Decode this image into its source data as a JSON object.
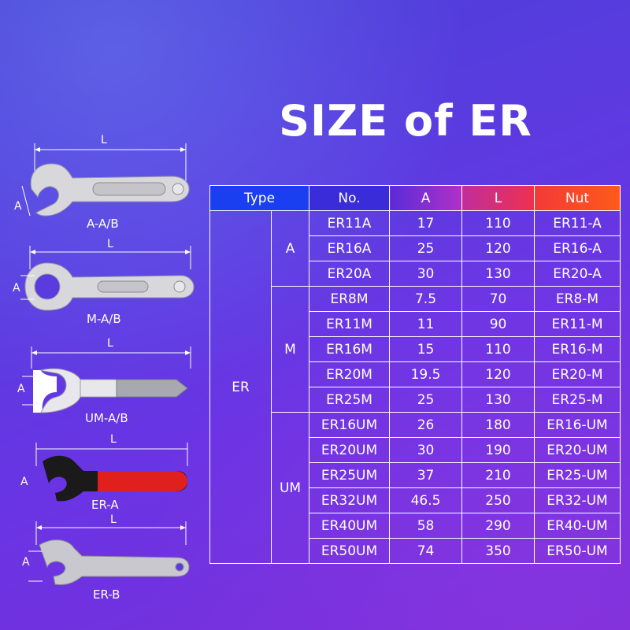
{
  "title": "SIZE of ER",
  "table": {
    "headers": {
      "type": "Type",
      "no": "No.",
      "a": "A",
      "l": "L",
      "nut": "Nut"
    },
    "header_colors": {
      "type": "#1a3ff0",
      "no": "#3a2cd8",
      "a": "#8a2fd8",
      "l": "#e0305a",
      "nut": "#ff4a1c"
    },
    "group": "ER",
    "subgroups": [
      "A",
      "M",
      "UM"
    ],
    "rows": [
      {
        "no": "ER11A",
        "a": "17",
        "l": "110",
        "nut": "ER11-A"
      },
      {
        "no": "ER16A",
        "a": "25",
        "l": "120",
        "nut": "ER16-A"
      },
      {
        "no": "ER20A",
        "a": "30",
        "l": "130",
        "nut": "ER20-A"
      },
      {
        "no": "ER8M",
        "a": "7.5",
        "l": "70",
        "nut": "ER8-M"
      },
      {
        "no": "ER11M",
        "a": "11",
        "l": "90",
        "nut": "ER11-M"
      },
      {
        "no": "ER16M",
        "a": "15",
        "l": "110",
        "nut": "ER16-M"
      },
      {
        "no": "ER20M",
        "a": "19.5",
        "l": "120",
        "nut": "ER20-M"
      },
      {
        "no": "ER25M",
        "a": "25",
        "l": "130",
        "nut": "ER25-M"
      },
      {
        "no": "ER16UM",
        "a": "26",
        "l": "180",
        "nut": "ER16-UM"
      },
      {
        "no": "ER20UM",
        "a": "30",
        "l": "190",
        "nut": "ER20-UM"
      },
      {
        "no": "ER25UM",
        "a": "37",
        "l": "210",
        "nut": "ER25-UM"
      },
      {
        "no": "ER32UM",
        "a": "46.5",
        "l": "250",
        "nut": "ER32-UM"
      },
      {
        "no": "ER40UM",
        "a": "58",
        "l": "290",
        "nut": "ER40-UM"
      },
      {
        "no": "ER50UM",
        "a": "74",
        "l": "350",
        "nut": "ER50-UM"
      }
    ]
  },
  "figures": [
    {
      "label": "A-A/B",
      "dim_l": "L",
      "dim_a": "A"
    },
    {
      "label": "M-A/B",
      "dim_l": "L",
      "dim_a": "A"
    },
    {
      "label": "UM-A/B",
      "dim_l": "L",
      "dim_a": "A"
    },
    {
      "label": "ER-A",
      "dim_l": "L",
      "dim_a": "A"
    },
    {
      "label": "ER-B",
      "dim_l": "L",
      "dim_a": "A"
    }
  ],
  "colors": {
    "background_top": "#4a3fd6",
    "background_bottom": "#7a2fd8",
    "table_border": "#ffffff",
    "text": "#ffffff",
    "wrench_red": "#e0201c",
    "wrench_black": "#1a1a1a"
  }
}
